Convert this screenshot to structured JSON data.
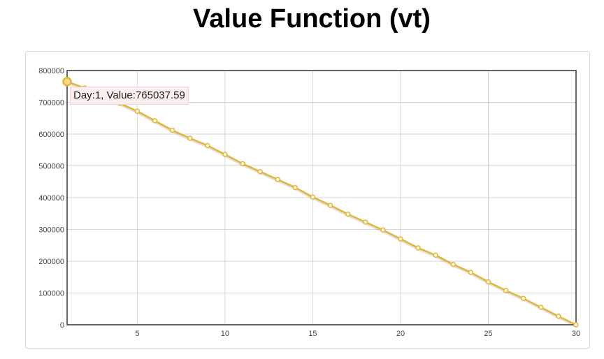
{
  "page": {
    "title": "Value Function (vt)"
  },
  "tooltip": {
    "text": "Day:1, Value:765037.59"
  },
  "colors": {
    "line": "#e3b53b",
    "marker_fill": "#fff8dc",
    "grid": "#d6d6d6",
    "axis": "#333333"
  },
  "chart_data": {
    "type": "line",
    "title": "Value Function (vt)",
    "xlabel": "",
    "ylabel": "",
    "xlim": [
      1,
      30
    ],
    "ylim": [
      0,
      800000
    ],
    "x_ticks": [
      5,
      10,
      15,
      20,
      25,
      30
    ],
    "y_ticks": [
      0,
      100000,
      200000,
      300000,
      400000,
      500000,
      600000,
      700000,
      800000
    ],
    "grid": true,
    "legend": "none",
    "highlighted_point_index": 0,
    "series": [
      {
        "x": [
          1,
          2,
          3,
          4,
          5,
          6,
          7,
          8,
          9,
          10,
          11,
          12,
          13,
          14,
          15,
          16,
          17,
          18,
          19,
          20,
          21,
          22,
          23,
          24,
          25,
          26,
          27,
          28,
          29,
          30
        ],
        "values": [
          765037.59,
          745000,
          722000,
          697000,
          672000,
          642000,
          612000,
          587000,
          564000,
          536000,
          507000,
          482000,
          457000,
          432000,
          402000,
          376000,
          348000,
          323000,
          298000,
          270000,
          242000,
          219000,
          190000,
          165000,
          135000,
          108000,
          83000,
          55000,
          27000,
          0
        ]
      }
    ]
  }
}
